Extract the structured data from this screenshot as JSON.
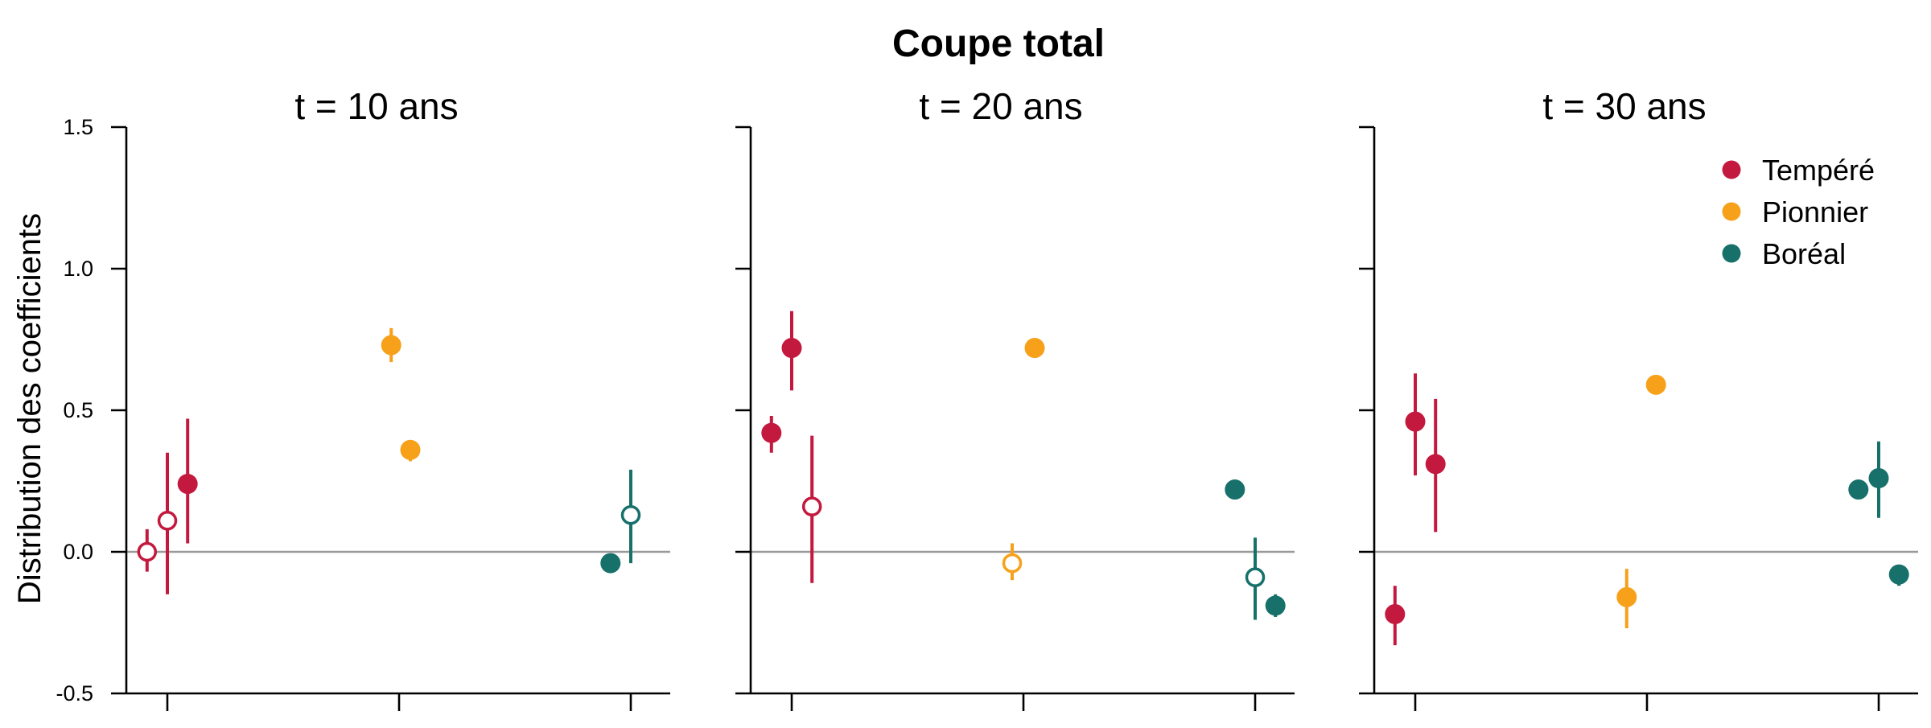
{
  "chart_data": {
    "type": "scatter",
    "title": "Coupe total",
    "ylabel": "Distribution des coefficients",
    "ylim": [
      -0.5,
      1.5
    ],
    "yticks": [
      "-0.5",
      "0.0",
      "0.5",
      "1.0",
      "1.5"
    ],
    "zero_line": 0,
    "groups": [
      "Tempéré",
      "Pionnier",
      "Boréal"
    ],
    "legend": {
      "position": "top-right",
      "entries": [
        {
          "label": "Tempéré",
          "color": "#C4193F"
        },
        {
          "label": "Pionnier",
          "color": "#F7A11A"
        },
        {
          "label": "Boréal",
          "color": "#17706A"
        }
      ]
    },
    "panels": [
      {
        "title": "t = 10 ans",
        "points": [
          {
            "group": "Tempéré",
            "offset": -0.18,
            "y": 0.0,
            "lo": -0.07,
            "hi": 0.08,
            "filled": false
          },
          {
            "group": "Tempéré",
            "offset": 0.0,
            "y": 0.11,
            "lo": -0.15,
            "hi": 0.35,
            "filled": false
          },
          {
            "group": "Tempéré",
            "offset": 0.18,
            "y": 0.24,
            "lo": 0.03,
            "hi": 0.47,
            "filled": true
          },
          {
            "group": "Pionnier",
            "offset": -0.07,
            "y": 0.73,
            "lo": 0.67,
            "hi": 0.79,
            "filled": true
          },
          {
            "group": "Pionnier",
            "offset": 0.1,
            "y": 0.36,
            "lo": 0.32,
            "hi": 0.39,
            "filled": true
          },
          {
            "group": "Boréal",
            "offset": -0.18,
            "y": -0.04,
            "lo": -0.04,
            "hi": -0.04,
            "filled": true
          },
          {
            "group": "Boréal",
            "offset": 0.0,
            "y": 0.13,
            "lo": -0.04,
            "hi": 0.29,
            "filled": false
          }
        ]
      },
      {
        "title": "t = 20 ans",
        "points": [
          {
            "group": "Tempéré",
            "offset": -0.18,
            "y": 0.42,
            "lo": 0.35,
            "hi": 0.48,
            "filled": true
          },
          {
            "group": "Tempéré",
            "offset": 0.0,
            "y": 0.72,
            "lo": 0.57,
            "hi": 0.85,
            "filled": true
          },
          {
            "group": "Tempéré",
            "offset": 0.18,
            "y": 0.16,
            "lo": -0.11,
            "hi": 0.41,
            "filled": false
          },
          {
            "group": "Pionnier",
            "offset": -0.1,
            "y": -0.04,
            "lo": -0.1,
            "hi": 0.03,
            "filled": false
          },
          {
            "group": "Pionnier",
            "offset": 0.1,
            "y": 0.72,
            "lo": 0.72,
            "hi": 0.72,
            "filled": true
          },
          {
            "group": "Boréal",
            "offset": -0.18,
            "y": 0.22,
            "lo": 0.22,
            "hi": 0.22,
            "filled": true
          },
          {
            "group": "Boréal",
            "offset": 0.0,
            "y": -0.09,
            "lo": -0.24,
            "hi": 0.05,
            "filled": false
          },
          {
            "group": "Boréal",
            "offset": 0.18,
            "y": -0.19,
            "lo": -0.23,
            "hi": -0.15,
            "filled": true
          }
        ]
      },
      {
        "title": "t = 30 ans",
        "points": [
          {
            "group": "Tempéré",
            "offset": -0.18,
            "y": -0.22,
            "lo": -0.33,
            "hi": -0.12,
            "filled": true
          },
          {
            "group": "Tempéré",
            "offset": 0.0,
            "y": 0.46,
            "lo": 0.27,
            "hi": 0.63,
            "filled": true
          },
          {
            "group": "Tempéré",
            "offset": 0.18,
            "y": 0.31,
            "lo": 0.07,
            "hi": 0.54,
            "filled": true
          },
          {
            "group": "Pionnier",
            "offset": -0.18,
            "y": -0.16,
            "lo": -0.27,
            "hi": -0.06,
            "filled": true
          },
          {
            "group": "Pionnier",
            "offset": 0.08,
            "y": 0.59,
            "lo": 0.56,
            "hi": 0.62,
            "filled": true
          },
          {
            "group": "Boréal",
            "offset": -0.18,
            "y": 0.22,
            "lo": 0.22,
            "hi": 0.22,
            "filled": true
          },
          {
            "group": "Boréal",
            "offset": 0.0,
            "y": 0.26,
            "lo": 0.12,
            "hi": 0.39,
            "filled": true
          },
          {
            "group": "Boréal",
            "offset": 0.18,
            "y": -0.08,
            "lo": -0.12,
            "hi": -0.05,
            "filled": true
          }
        ]
      }
    ]
  }
}
